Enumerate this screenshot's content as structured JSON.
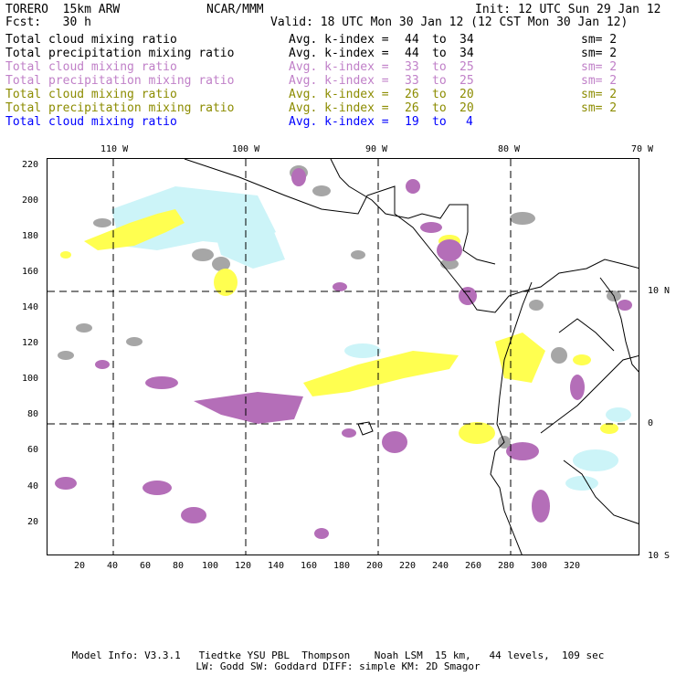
{
  "header": {
    "model_name": "TORERO  15km ARW",
    "center": "NCAR/MMM",
    "init": "Init: 12 UTC Sun 29 Jan 12",
    "fcst": "Fcst:   30 h",
    "valid": "Valid: 18 UTC Mon 30 Jan 12 (12 CST Mon 30 Jan 12)"
  },
  "legend": [
    {
      "field": "Total cloud mixing ratio",
      "stat": "Avg. k-index =",
      "from": "44",
      "to_word": "to",
      "to": "34",
      "sm": "sm= 2",
      "color": "#000000"
    },
    {
      "field": "Total precipitation mixing ratio",
      "stat": "Avg. k-index =",
      "from": "44",
      "to_word": "to",
      "to": "34",
      "sm": "sm= 2",
      "color": "#000000"
    },
    {
      "field": "Total cloud mixing ratio",
      "stat": "Avg. k-index =",
      "from": "33",
      "to_word": "to",
      "to": "25",
      "sm": "sm= 2",
      "color": "#c080c8"
    },
    {
      "field": "Total precipitation mixing ratio",
      "stat": "Avg. k-index =",
      "from": "33",
      "to_word": "to",
      "to": "25",
      "sm": "sm= 2",
      "color": "#c080c8"
    },
    {
      "field": "Total cloud mixing ratio",
      "stat": "Avg. k-index =",
      "from": "26",
      "to_word": "to",
      "to": "20",
      "sm": "sm= 2",
      "color": "#8c8c00"
    },
    {
      "field": "Total precipitation mixing ratio",
      "stat": "Avg. k-index =",
      "from": "26",
      "to_word": "to",
      "to": "20",
      "sm": "sm= 2",
      "color": "#8c8c00"
    },
    {
      "field": "Total cloud mixing ratio",
      "stat": "Avg. k-index =",
      "from": "19",
      "to_word": "to",
      "to": "4",
      "sm": "",
      "color": "#0000ff"
    }
  ],
  "map": {
    "lon_labels": [
      "110 W",
      "100 W",
      "90 W",
      "80 W",
      "70 W"
    ],
    "lat_labels": [
      "10 N",
      "0",
      "10 S"
    ],
    "x_ticks": [
      "20",
      "40",
      "60",
      "80",
      "100",
      "120",
      "140",
      "160",
      "180",
      "200",
      "220",
      "240",
      "260",
      "280",
      "300",
      "320"
    ],
    "y_ticks": [
      "20",
      "40",
      "60",
      "80",
      "100",
      "120",
      "140",
      "160",
      "180",
      "200",
      "220"
    ],
    "colors": {
      "gray": "#a0a0a0",
      "purple": "#b070b8",
      "yellow": "#ffff50",
      "lightblue": "#ccf4f8",
      "coast": "#000000",
      "grid": "#000000"
    }
  },
  "footer": {
    "line1": "Model Info: V3.3.1   Tiedtke YSU PBL  Thompson    Noah LSM  15 km,   44 levels,  109 sec",
    "line2": "LW: Godd SW: Goddard DIFF: simple KM: 2D Smagor"
  }
}
